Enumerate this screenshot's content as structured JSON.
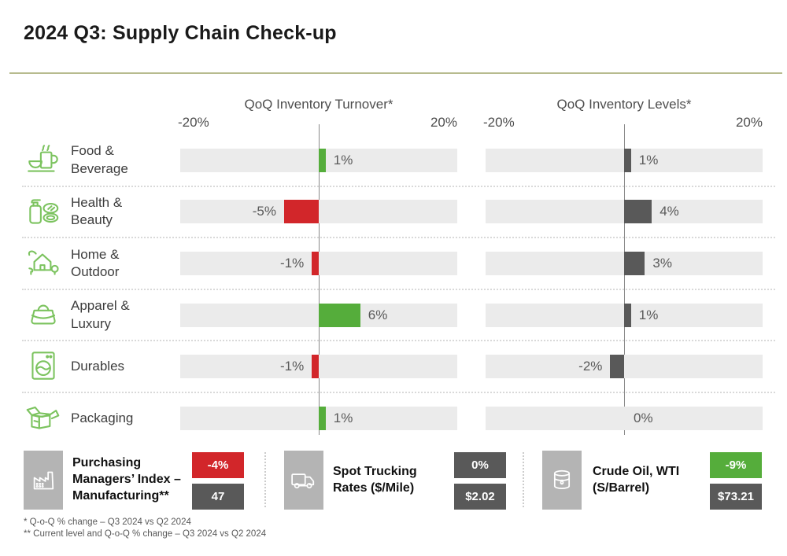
{
  "title": "2024 Q3: Supply Chain Check-up",
  "charts": {
    "turnover_title": "QoQ Inventory Turnover*",
    "levels_title": "QoQ Inventory Levels*",
    "axis_min_label": "-20%",
    "axis_max_label": "20%"
  },
  "rows": [
    {
      "label": "Food & Beverage",
      "icon": "food-beverage-icon",
      "turnover": 1,
      "turnover_label": "1%",
      "levels": 1,
      "levels_label": "1%"
    },
    {
      "label": "Health & Beauty",
      "icon": "health-beauty-icon",
      "turnover": -5,
      "turnover_label": "-5%",
      "levels": 4,
      "levels_label": "4%"
    },
    {
      "label": "Home & Outdoor",
      "icon": "home-outdoor-icon",
      "turnover": -1,
      "turnover_label": "-1%",
      "levels": 3,
      "levels_label": "3%"
    },
    {
      "label": "Apparel & Luxury",
      "icon": "apparel-luxury-icon",
      "turnover": 6,
      "turnover_label": "6%",
      "levels": 1,
      "levels_label": "1%"
    },
    {
      "label": "Durables",
      "icon": "durables-icon",
      "turnover": -1,
      "turnover_label": "-1%",
      "levels": -2,
      "levels_label": "-2%"
    },
    {
      "label": "Packaging",
      "icon": "packaging-icon",
      "turnover": 1,
      "turnover_label": "1%",
      "levels": 0,
      "levels_label": "0%"
    }
  ],
  "kpis": [
    {
      "label": "Purchasing Managers’ Index – Manufacturing**",
      "icon": "factory-icon",
      "change": "-4%",
      "change_color": "#d2262a",
      "level": "47"
    },
    {
      "label": "Spot Trucking Rates ($/Mile)",
      "icon": "truck-icon",
      "change": "0%",
      "change_color": "#595959",
      "level": "$2.02"
    },
    {
      "label": "Crude Oil, WTI (S/Barrel)",
      "icon": "oil-barrel-icon",
      "change": "-9%",
      "change_color": "#55ad3b",
      "level": "$73.21"
    }
  ],
  "footnotes": {
    "line1": "* Q-o-Q % change – Q3 2024 vs Q2 2024",
    "line2": "** Current level and Q-o-Q % change – Q3 2024 vs Q2 2024"
  },
  "colors": {
    "bar_positive": "#55ad3b",
    "bar_negative": "#d2262a",
    "bar_neutral": "#595959",
    "bar_track": "#ebebeb",
    "title_rule": "#b7bb8e",
    "icon_green": "#7cc35f",
    "kpi_icon_box": "#b4b4b4"
  },
  "chart_data": {
    "type": "bar",
    "orientation": "horizontal",
    "title": "2024 Q3: Supply Chain Check-up",
    "categories": [
      "Food & Beverage",
      "Health & Beauty",
      "Home & Outdoor",
      "Apparel & Luxury",
      "Durables",
      "Packaging"
    ],
    "series": [
      {
        "name": "QoQ Inventory Turnover*",
        "unit": "%",
        "values": [
          1,
          -5,
          -1,
          6,
          -1,
          1
        ]
      },
      {
        "name": "QoQ Inventory Levels*",
        "unit": "%",
        "values": [
          1,
          4,
          3,
          1,
          -2,
          0
        ]
      }
    ],
    "xlim": [
      -20,
      20
    ],
    "axis_tick_labels": [
      "-20%",
      "20%"
    ],
    "grid": false,
    "legend_position": "none",
    "kpis": [
      {
        "label": "Purchasing Managers’ Index – Manufacturing**",
        "qoq_change": "-4%",
        "current_level": "47"
      },
      {
        "label": "Spot Trucking Rates ($/Mile)",
        "qoq_change": "0%",
        "current_level": "$2.02"
      },
      {
        "label": "Crude Oil, WTI (S/Barrel)",
        "qoq_change": "-9%",
        "current_level": "$73.21"
      }
    ],
    "footnotes": [
      "* Q-o-Q % change – Q3 2024 vs Q2 2024",
      "** Current level and Q-o-Q % change – Q3 2024 vs Q2 2024"
    ]
  }
}
